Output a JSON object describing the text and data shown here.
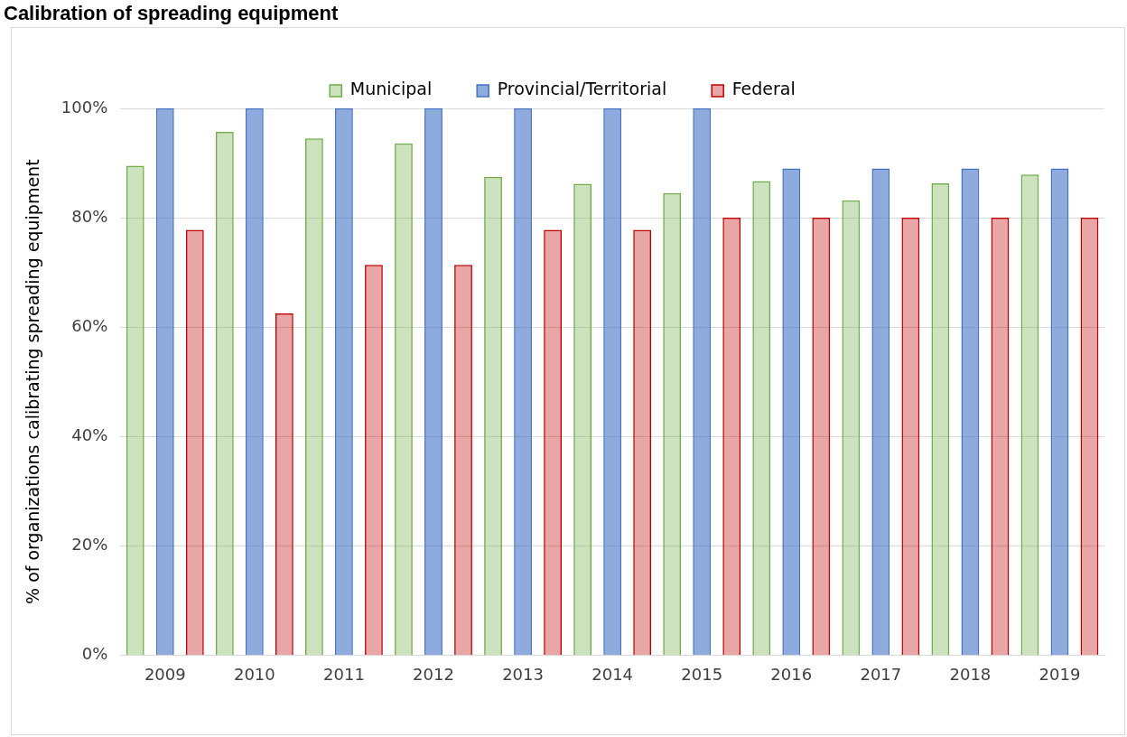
{
  "chart_data": {
    "type": "bar",
    "title": "Calibration of spreading equipment",
    "ylabel": "% of organizations calibrating spreading equipment",
    "categories": [
      "2009",
      "2010",
      "2011",
      "2012",
      "2013",
      "2014",
      "2015",
      "2016",
      "2017",
      "2018",
      "2019"
    ],
    "series": [
      {
        "name": "Municipal",
        "color": "#70ad47",
        "values": [
          89.5,
          95.7,
          94.5,
          93.6,
          87.5,
          86.2,
          84.5,
          86.7,
          83.2,
          86.3,
          87.9
        ]
      },
      {
        "name": "Provincial/Territorial",
        "color": "#4472c4",
        "values": [
          100,
          100,
          100,
          100,
          100,
          100,
          100,
          89,
          89,
          89,
          89
        ]
      },
      {
        "name": "Federal",
        "color": "#c00000",
        "values": [
          77.8,
          62.5,
          71.4,
          71.4,
          77.8,
          77.8,
          80,
          80,
          80,
          80,
          80
        ]
      }
    ],
    "ylim": [
      0,
      100
    ],
    "yticks": [
      {
        "value": 0,
        "label": "0%"
      },
      {
        "value": 20,
        "label": "20%"
      },
      {
        "value": 40,
        "label": "40%"
      },
      {
        "value": 60,
        "label": "60%"
      },
      {
        "value": 80,
        "label": "80%"
      },
      {
        "value": 100,
        "label": "100%"
      }
    ],
    "grid": "y",
    "legend": "top"
  }
}
